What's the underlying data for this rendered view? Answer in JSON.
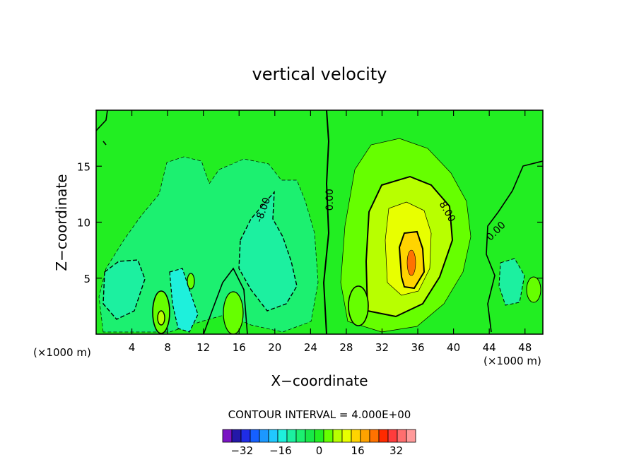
{
  "chart_data": {
    "type": "contour",
    "title": "vertical velocity",
    "xlabel": "X−coordinate",
    "ylabel": "Z−coordinate",
    "x_unit_left": "(×1000 m)",
    "x_unit_right": "(×1000 m)",
    "xlim": [
      0,
      50
    ],
    "ylim": [
      0,
      20
    ],
    "x_ticks": [
      4,
      8,
      12,
      16,
      20,
      24,
      28,
      32,
      36,
      40,
      44,
      48
    ],
    "y_ticks": [
      5,
      10,
      15
    ],
    "contour_interval_text": "CONTOUR INTERVAL = 4.000E+00",
    "contour_labels": [
      {
        "text": "0.00",
        "x": 26.5,
        "y": 12.0,
        "angle": -90
      },
      {
        "text": "-8.00",
        "x": 19.0,
        "y": 11.0,
        "angle": -70
      },
      {
        "text": "8.00",
        "x": 39.0,
        "y": 10.8,
        "angle": 60
      },
      {
        "text": "0.00",
        "x": 45.0,
        "y": 9.0,
        "angle": -45
      }
    ],
    "colorbar": {
      "levels": [
        -40,
        -36,
        -32,
        -28,
        -24,
        -20,
        -16,
        -12,
        -8,
        -4,
        0,
        4,
        8,
        12,
        16,
        20,
        24,
        28,
        32,
        36,
        40
      ],
      "tick_labels": [
        "−32",
        "−16",
        "0",
        "16",
        "32"
      ],
      "tick_values": [
        -32,
        -16,
        0,
        16,
        32
      ],
      "colors": [
        "#7a14c4",
        "#2418a8",
        "#1f2ce6",
        "#1560ff",
        "#1c98ff",
        "#21c8ff",
        "#1ef0dc",
        "#1cf0a0",
        "#1cf070",
        "#18e848",
        "#22ee22",
        "#66ff00",
        "#b8ff00",
        "#e8ff00",
        "#ffd400",
        "#ffa200",
        "#ff7200",
        "#ff2a00",
        "#ff3c3c",
        "#ff6e6e",
        "#ff9a9a"
      ]
    },
    "features": [
      {
        "kind": "updraft",
        "center": [
          35,
          6.5
        ],
        "max": 24
      },
      {
        "kind": "downdraft",
        "region": "x 2-24, z 0-16",
        "min": -16
      }
    ]
  }
}
